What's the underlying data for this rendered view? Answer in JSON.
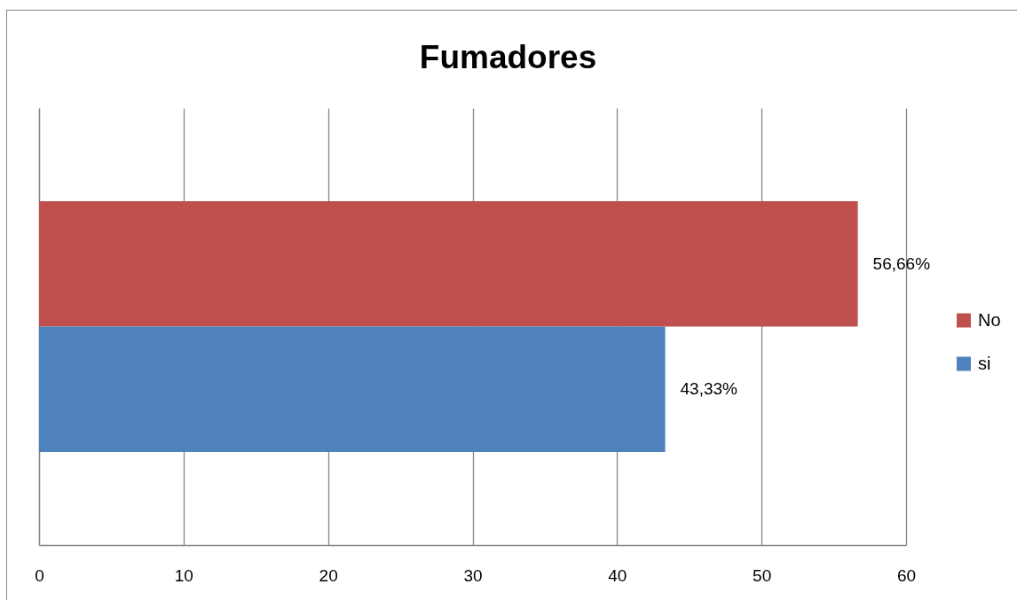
{
  "chart_data": {
    "type": "bar",
    "title": "Fumadores",
    "orientation": "horizontal",
    "categories": [
      null
    ],
    "series": [
      {
        "name": "No",
        "color": "#c0504d",
        "values": [
          56.66
        ],
        "value_labels": [
          "56,66%"
        ]
      },
      {
        "name": "si",
        "color": "#4f81bd",
        "values": [
          43.33
        ],
        "value_labels": [
          "43,33%"
        ]
      }
    ],
    "xlim": [
      0,
      60
    ],
    "xticks": [
      0,
      10,
      20,
      30,
      40,
      50,
      60
    ],
    "grid": "x",
    "legend": "right"
  }
}
